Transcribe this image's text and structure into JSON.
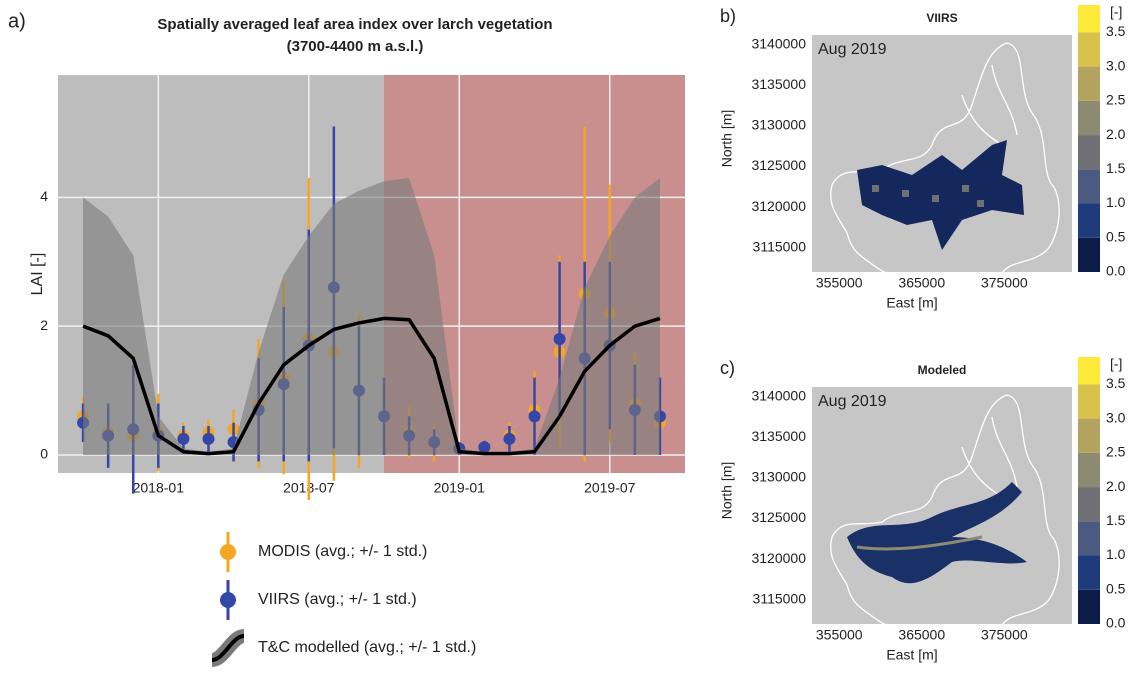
{
  "chart_data": [
    {
      "type": "timeseries",
      "panel_label": "a)",
      "title": "Spatially averaged leaf area index over larch vegetation",
      "subtitle": "(3700-4400 m a.s.l.)",
      "ylabel": "LAI [-]",
      "x": [
        "2017-10",
        "2017-11",
        "2017-12",
        "2018-01",
        "2018-02",
        "2018-03",
        "2018-04",
        "2018-05",
        "2018-06",
        "2018-07",
        "2018-08",
        "2018-09",
        "2018-10",
        "2018-11",
        "2018-12",
        "2019-01",
        "2019-02",
        "2019-03",
        "2019-04",
        "2019-05",
        "2019-06",
        "2019-07",
        "2019-08",
        "2019-09"
      ],
      "xlim": [
        "2017-09",
        "2019-10"
      ],
      "xticks": [
        "2018-01",
        "2018-07",
        "2019-01",
        "2019-07"
      ],
      "ylim": [
        -0.28,
        5.9
      ],
      "yticks": [
        0,
        2,
        4
      ],
      "grid": true,
      "background": "#bdbdbd",
      "shaded_regions": [
        {
          "from": "2018-10",
          "to": "2019-10",
          "color": "#c98f8f"
        }
      ],
      "series": [
        {
          "name": "T&C modelled (avg.; +/- 1 std.)",
          "kind": "band",
          "color": "#000000",
          "band_color": "#7a7a7a",
          "values": [
            2.0,
            1.85,
            1.5,
            0.3,
            0.05,
            0.02,
            0.05,
            0.8,
            1.4,
            1.7,
            1.95,
            2.05,
            2.12,
            2.1,
            1.5,
            0.05,
            0.02,
            0.02,
            0.05,
            0.6,
            1.3,
            1.7,
            2.0,
            2.12
          ],
          "lower": [
            0,
            0,
            0,
            0,
            0,
            0,
            0,
            0,
            0,
            0,
            0,
            0,
            0,
            0,
            0,
            0,
            0,
            0,
            0,
            0,
            0,
            0,
            0,
            0
          ],
          "upper": [
            4.0,
            3.7,
            3.1,
            0.6,
            0.1,
            0.05,
            0.1,
            1.6,
            2.8,
            3.4,
            3.9,
            4.1,
            4.25,
            4.3,
            3.1,
            0.1,
            0.05,
            0.05,
            0.1,
            1.2,
            2.6,
            3.4,
            4.0,
            4.3
          ]
        },
        {
          "name": "MODIS (avg.; +/- 1 std.)",
          "kind": "errorbar",
          "color": "#f5a623",
          "values": [
            0.6,
            0.35,
            0.3,
            0.35,
            0.3,
            0.35,
            0.4,
            0.8,
            1.2,
            1.8,
            1.6,
            1.0,
            0.6,
            0.35,
            0.2,
            0.1,
            0.1,
            0.3,
            0.7,
            1.6,
            2.5,
            2.2,
            0.8,
            0.5
          ],
          "error": [
            0.3,
            0.4,
            0.8,
            0.6,
            0.2,
            0.2,
            0.3,
            1.0,
            1.5,
            2.5,
            2.0,
            1.2,
            0.6,
            0.4,
            0.3,
            0.1,
            0.1,
            0.2,
            0.6,
            1.5,
            2.6,
            2.0,
            0.8,
            0.5
          ]
        },
        {
          "name": "VIIRS (avg.; +/- 1 std.)",
          "kind": "errorbar",
          "color": "#3446a8",
          "values": [
            0.5,
            0.3,
            0.4,
            0.3,
            0.25,
            0.25,
            0.2,
            0.7,
            1.1,
            1.7,
            2.6,
            1.0,
            0.6,
            0.3,
            0.2,
            0.1,
            0.12,
            0.25,
            0.6,
            1.8,
            1.5,
            1.7,
            0.7,
            0.6
          ],
          "error": [
            0.3,
            0.5,
            1.0,
            0.5,
            0.2,
            0.2,
            0.3,
            0.8,
            1.2,
            1.8,
            2.5,
            1.0,
            0.6,
            0.3,
            0.2,
            0.1,
            0.1,
            0.2,
            0.6,
            1.2,
            1.5,
            1.3,
            0.7,
            0.6
          ]
        }
      ]
    },
    {
      "type": "map",
      "panel_label": "b)",
      "title": "VIIRS",
      "annotation": "Aug 2019",
      "xlabel": "East [m]",
      "ylabel": "North [m]",
      "xlim": [
        351700,
        383200
      ],
      "ylim": [
        3112000,
        3144900
      ],
      "xticks": [
        355000,
        365000,
        375000
      ],
      "yticks": [
        3115000,
        3120000,
        3125000,
        3130000,
        3135000,
        3140000
      ],
      "colorbar": {
        "label": "[-]",
        "lim": [
          0,
          3.9
        ],
        "ticks": [
          {
            "value": 0,
            "label": "0.0"
          },
          {
            "value": 0.5,
            "label": "0.5"
          },
          {
            "value": 1,
            "label": "1.0"
          },
          {
            "value": 1.5,
            "label": "1.5"
          },
          {
            "value": 2,
            "label": "2.0"
          },
          {
            "value": 2.5,
            "label": "2.5"
          },
          {
            "value": 3,
            "label": "3.0"
          },
          {
            "value": 3.5,
            "label": "3.5"
          }
        ],
        "colors": [
          "#0d1d4a",
          "#1f3a7a",
          "#4a5a80",
          "#6f6f74",
          "#8d8a72",
          "#b2a35e",
          "#d9c24c",
          "#fde93a"
        ]
      }
    },
    {
      "type": "map",
      "panel_label": "c)",
      "title": "Modeled",
      "annotation": "Aug 2019",
      "xlabel": "East [m]",
      "ylabel": "North [m]",
      "xlim": [
        351700,
        383200
      ],
      "ylim": [
        3112000,
        3144900
      ],
      "xticks": [
        355000,
        365000,
        375000
      ],
      "yticks": [
        3115000,
        3120000,
        3125000,
        3130000,
        3135000,
        3140000
      ],
      "colorbar": {
        "label": "[-]",
        "lim": [
          0,
          3.9
        ],
        "ticks": [
          {
            "value": 0,
            "label": "0.0"
          },
          {
            "value": 0.5,
            "label": "0.5"
          },
          {
            "value": 1,
            "label": "1.0"
          },
          {
            "value": 1.5,
            "label": "1.5"
          },
          {
            "value": 2,
            "label": "2.0"
          },
          {
            "value": 2.5,
            "label": "2.5"
          },
          {
            "value": 3,
            "label": "3.0"
          },
          {
            "value": 3.5,
            "label": "3.5"
          }
        ],
        "colors": [
          "#0d1d4a",
          "#1f3a7a",
          "#4a5a80",
          "#6f6f74",
          "#8d8a72",
          "#b2a35e",
          "#d9c24c",
          "#fde93a"
        ]
      }
    }
  ]
}
